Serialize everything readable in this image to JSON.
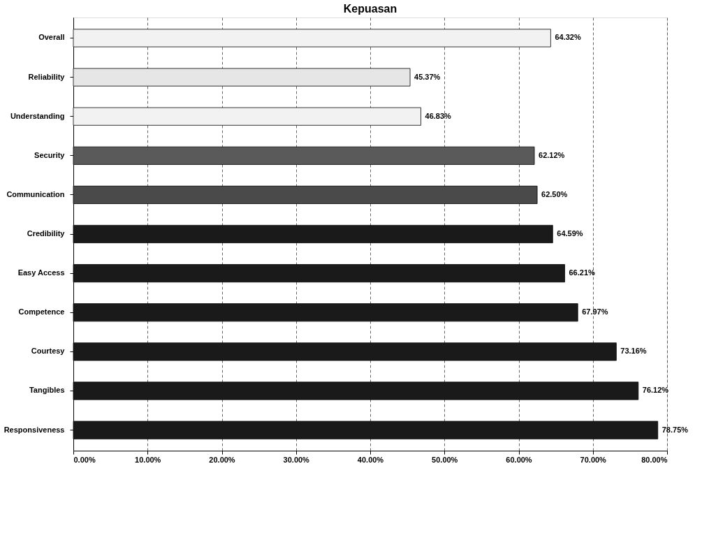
{
  "chart_data": {
    "type": "bar",
    "title": "Kepuasan",
    "orientation": "horizontal",
    "categories": [
      "Overall",
      "Reliability",
      "Understanding",
      "Security",
      "Communication",
      "Credibility",
      "Easy Access",
      "Competence",
      "Courtesy",
      "Tangibles",
      "Responsiveness"
    ],
    "values": [
      64.32,
      45.37,
      46.83,
      62.12,
      62.5,
      64.59,
      66.21,
      67.97,
      73.16,
      76.12,
      78.75
    ],
    "colors": [
      "#f2f2f2",
      "#e6e6e6",
      "#f2f2f2",
      "#5a5a5a",
      "#4a4a4a",
      "#1a1a1a",
      "#1a1a1a",
      "#1a1a1a",
      "#1a1a1a",
      "#1a1a1a",
      "#1a1a1a"
    ],
    "value_labels": [
      "64.32%",
      "45.37%",
      "46.83%",
      "62.12%",
      "62.50%",
      "64.59%",
      "66.21%",
      "67.97%",
      "73.16%",
      "76.12%",
      "78.75%"
    ],
    "xlim": [
      0,
      80
    ],
    "xticks": [
      {
        "value": 0,
        "label": "0.00%"
      },
      {
        "value": 10,
        "label": "10.00%"
      },
      {
        "value": 20,
        "label": "20.00%"
      },
      {
        "value": 30,
        "label": "30.00%"
      },
      {
        "value": 40,
        "label": "40.00%"
      },
      {
        "value": 50,
        "label": "50.00%"
      },
      {
        "value": 60,
        "label": "60.00%"
      },
      {
        "value": 70,
        "label": "70.00%"
      },
      {
        "value": 80,
        "label": "80.00%"
      }
    ],
    "grid": "x",
    "line_style": "dashed",
    "legend": false
  }
}
